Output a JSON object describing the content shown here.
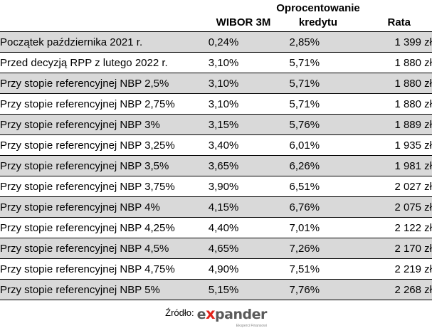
{
  "table": {
    "headers": {
      "wibor": "WIBOR 3M",
      "oprocentowanie_line1": "Oprocentowanie",
      "oprocentowanie_line2": "kredytu",
      "rata": "Rata"
    },
    "rows": [
      {
        "label": "Początek października 2021 r.",
        "wibor": "0,24%",
        "oprocentowanie": "2,85%",
        "rata": "1 399 zł"
      },
      {
        "label": "Przed decyzją RPP z lutego 2022 r.",
        "wibor": "3,10%",
        "oprocentowanie": "5,71%",
        "rata": "1 880 zł"
      },
      {
        "label": "Przy stopie referencyjnej NBP 2,5%",
        "wibor": "3,10%",
        "oprocentowanie": "5,71%",
        "rata": "1 880 zł"
      },
      {
        "label": "Przy stopie referencyjnej NBP 2,75%",
        "wibor": "3,10%",
        "oprocentowanie": "5,71%",
        "rata": "1 880 zł"
      },
      {
        "label": "Przy stopie referencyjnej NBP 3%",
        "wibor": "3,15%",
        "oprocentowanie": "5,76%",
        "rata": "1 889 zł"
      },
      {
        "label": "Przy stopie referencyjnej NBP 3,25%",
        "wibor": "3,40%",
        "oprocentowanie": "6,01%",
        "rata": "1 935 zł"
      },
      {
        "label": "Przy stopie referencyjnej NBP 3,5%",
        "wibor": "3,65%",
        "oprocentowanie": "6,26%",
        "rata": "1 981 zł"
      },
      {
        "label": "Przy stopie referencyjnej NBP 3,75%",
        "wibor": "3,90%",
        "oprocentowanie": "6,51%",
        "rata": "2 027 zł"
      },
      {
        "label": "Przy stopie referencyjnej NBP 4%",
        "wibor": "4,15%",
        "oprocentowanie": "6,76%",
        "rata": "2 075 zł"
      },
      {
        "label": "Przy stopie referencyjnej NBP 4,25%",
        "wibor": "4,40%",
        "oprocentowanie": "7,01%",
        "rata": "2 122 zł"
      },
      {
        "label": "Przy stopie referencyjnej NBP 4,5%",
        "wibor": "4,65%",
        "oprocentowanie": "7,26%",
        "rata": "2 170 zł"
      },
      {
        "label": "Przy stopie referencyjnej NBP 4,75%",
        "wibor": "4,90%",
        "oprocentowanie": "7,51%",
        "rata": "2 219 zł"
      },
      {
        "label": "Przy stopie referencyjnej NBP 5%",
        "wibor": "5,15%",
        "oprocentowanie": "7,76%",
        "rata": "2 268 zł"
      }
    ]
  },
  "source": {
    "label": "Źródło:",
    "logo_prefix": "e",
    "logo_x": "x",
    "logo_suffix": "pander",
    "logo_tagline": "Eksperci Finansowi"
  },
  "colors": {
    "row_shaded": "#d9d9d9",
    "row_plain": "#ffffff",
    "logo_red": "#e2231a",
    "logo_gray": "#5a5a5a"
  }
}
